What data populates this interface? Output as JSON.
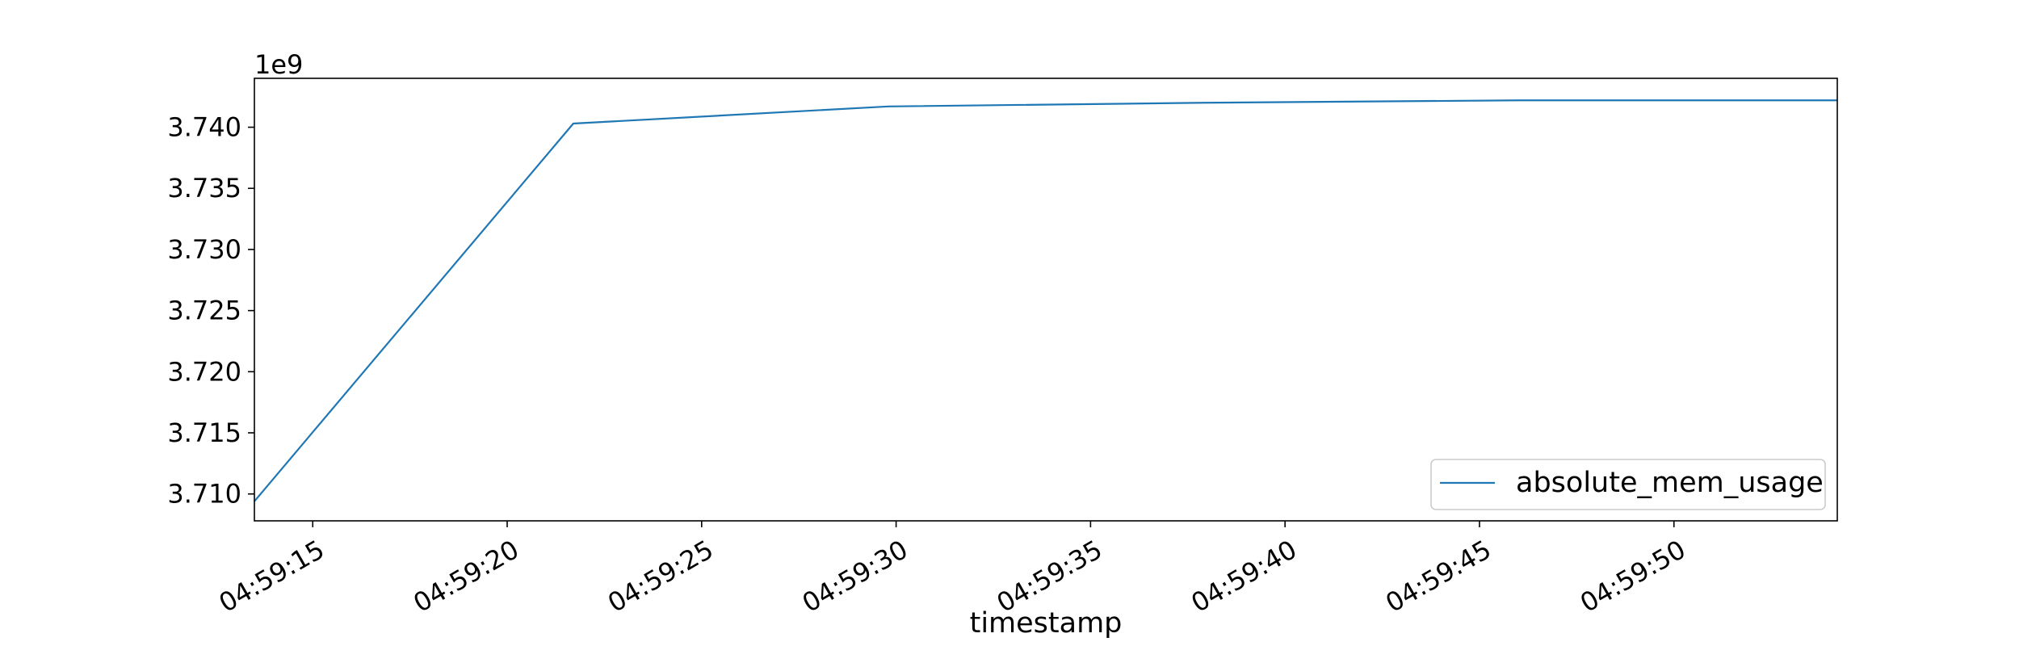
{
  "chart_data": {
    "type": "line",
    "xlabel": "timestamp",
    "ylabel": "",
    "title": "",
    "y_offset_label": "1e9",
    "x_tick_labels": [
      "04:59:15",
      "04:59:20",
      "04:59:25",
      "04:59:30",
      "04:59:35",
      "04:59:40",
      "04:59:45",
      "04:59:50"
    ],
    "x_tick_seconds": [
      15,
      20,
      25,
      30,
      35,
      40,
      45,
      50
    ],
    "y_tick_labels": [
      "3.710",
      "3.715",
      "3.720",
      "3.725",
      "3.730",
      "3.735",
      "3.740"
    ],
    "y_tick_values": [
      3.71,
      3.715,
      3.72,
      3.725,
      3.73,
      3.735,
      3.74
    ],
    "xlim_seconds": [
      13.5,
      54.2
    ],
    "ylim": [
      3.7078,
      3.744
    ],
    "legend_position": "lower-right",
    "grid": false,
    "series": [
      {
        "name": "absolute_mem_usage",
        "color": "#1f77b4",
        "x_seconds": [
          13.5,
          21.7,
          29.8,
          37.9,
          46.0,
          54.2
        ],
        "values": [
          3.7094,
          3.7403,
          3.7417,
          3.742,
          3.7422,
          3.7422
        ]
      }
    ]
  }
}
